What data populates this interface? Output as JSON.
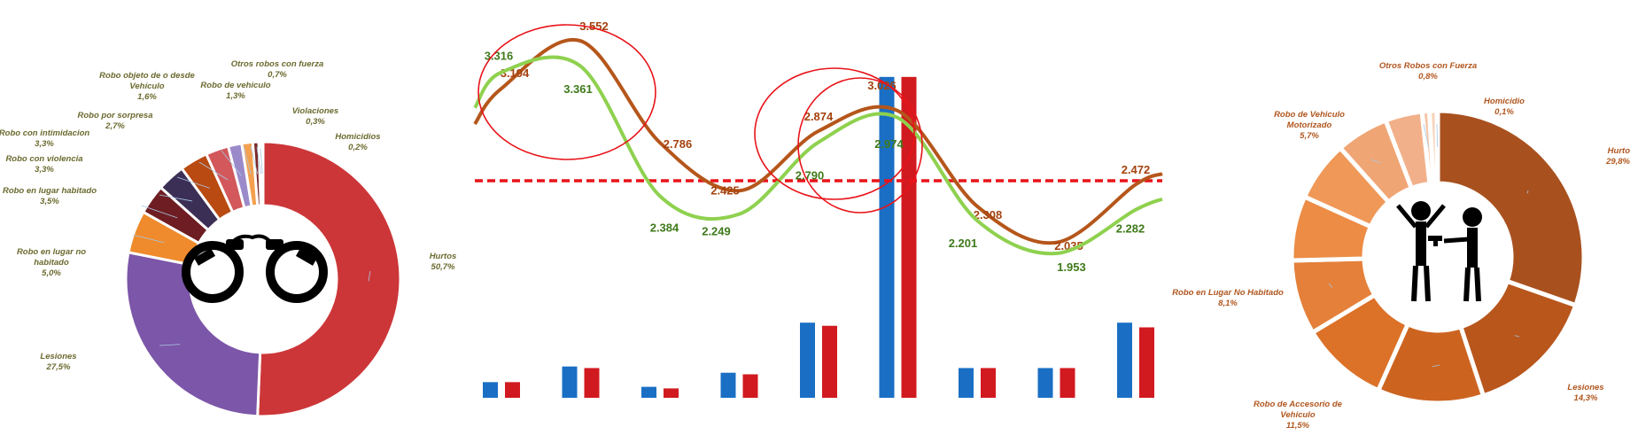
{
  "chart_data": [
    {
      "type": "pie",
      "donut": true,
      "slices": [
        {
          "name_lines": [
            "Hurtos"
          ],
          "pct_label": "50,7%",
          "value": 50.7,
          "color": "#cc3638"
        },
        {
          "name_lines": [
            "Lesiones"
          ],
          "pct_label": "27,5%",
          "value": 27.5,
          "color": "#7c56a8"
        },
        {
          "name_lines": [
            "Robo en lugar no",
            "habitado"
          ],
          "pct_label": "5,0%",
          "value": 5.0,
          "color": "#ef8b2c"
        },
        {
          "name_lines": [
            "Robo en lugar habitado"
          ],
          "pct_label": "3,5%",
          "value": 3.5,
          "color": "#6e1e22"
        },
        {
          "name_lines": [
            "Robo con violencia"
          ],
          "pct_label": "3,3%",
          "value": 3.3,
          "color": "#3c2f55"
        },
        {
          "name_lines": [
            "Robo con intimidacion"
          ],
          "pct_label": "3,3%",
          "value": 3.3,
          "color": "#b84a12"
        },
        {
          "name_lines": [
            "Robo por sorpresa"
          ],
          "pct_label": "2,7%",
          "value": 2.7,
          "color": "#d2585b"
        },
        {
          "name_lines": [
            "Robo objeto de o desde",
            "Vehículo"
          ],
          "pct_label": "1,6%",
          "value": 1.6,
          "color": "#9b8ac9"
        },
        {
          "name_lines": [
            "Robo de vehiculo"
          ],
          "pct_label": "1,3%",
          "value": 1.3,
          "color": "#f4a04f"
        },
        {
          "name_lines": [
            "Otros robos con fuerza"
          ],
          "pct_label": "0,7%",
          "value": 0.7,
          "color": "#7a2a2a"
        },
        {
          "name_lines": [
            "Violaciones"
          ],
          "pct_label": "0,3%",
          "value": 0.3,
          "color": "#584a7a"
        },
        {
          "name_lines": [
            "Homicidios"
          ],
          "pct_label": "0,2%",
          "value": 0.2,
          "color": "#c06020"
        }
      ],
      "center_icon": "handcuffs-icon"
    },
    {
      "type": "line",
      "series": [
        {
          "color": "#b5561b",
          "points": [
            {
              "value": 3.194,
              "label": "3.194"
            },
            {
              "value": 3.552,
              "label": "3.552"
            },
            {
              "value": 2.786,
              "label": "2.786"
            },
            {
              "value": 2.425,
              "label": "2.425"
            },
            {
              "value": 2.874,
              "label": "2.874"
            },
            {
              "value": 3.026,
              "label": "3.026"
            },
            {
              "value": 2.308,
              "label": "2.308"
            },
            {
              "value": 2.035,
              "label": "2.035"
            },
            {
              "value": 2.472,
              "label": "2.472"
            }
          ]
        },
        {
          "color": "#8fd14f",
          "points": [
            {
              "value": 3.316,
              "label": "3.316"
            },
            {
              "value": 3.361,
              "label": "3.361"
            },
            {
              "value": 2.384,
              "label": "2.384"
            },
            {
              "value": 2.249,
              "label": "2.249"
            },
            {
              "value": 2.79,
              "label": "2.790"
            },
            {
              "value": 2.974,
              "label": "2.974"
            },
            {
              "value": 2.201,
              "label": "2.201"
            },
            {
              "value": 1.953,
              "label": "1.953"
            },
            {
              "value": 2.282,
              "label": "2.282"
            }
          ]
        }
      ],
      "reference_line": {
        "value": 2.5,
        "style": "dashed",
        "color": "#e8141a"
      },
      "highlight_circles": 3,
      "bars": {
        "series_colors": [
          "#1a6fc4",
          "#d11a1f"
        ],
        "groups": [
          [
            1.0,
            1.0
          ],
          [
            2.0,
            1.9
          ],
          [
            0.7,
            0.6
          ],
          [
            1.6,
            1.5
          ],
          [
            4.8,
            4.6
          ],
          [
            20.5,
            20.5
          ],
          [
            1.9,
            1.9
          ],
          [
            1.9,
            1.9
          ],
          [
            4.8,
            4.5
          ]
        ],
        "ylim": [
          0,
          21
        ]
      }
    },
    {
      "type": "pie",
      "donut": true,
      "slices": [
        {
          "name_lines": [
            "Hurto"
          ],
          "pct_label": "29,8%",
          "value": 29.8,
          "color": "#a8511f"
        },
        {
          "name_lines": [
            "Lesiones"
          ],
          "pct_label": "14,3%",
          "value": 14.3,
          "color": "#b8561c"
        },
        {
          "name_lines": [
            "Robo de Accesorio de",
            "Vehiculo"
          ],
          "pct_label": "11,5%",
          "value": 11.5,
          "color": "#cc6420"
        },
        {
          "name_lines": [],
          "pct_label": "",
          "value": 9.5,
          "color": "#dc7128"
        },
        {
          "name_lines": [
            "Robo en Lugar No Habitado"
          ],
          "pct_label": "8,1%",
          "value": 8.1,
          "color": "#e4803a"
        },
        {
          "name_lines": [],
          "pct_label": "",
          "value": 7.0,
          "color": "#ec8c45"
        },
        {
          "name_lines": [],
          "pct_label": "",
          "value": 6.5,
          "color": "#ef9858"
        },
        {
          "name_lines": [
            "Robo de Vehiculo",
            "Motorizado"
          ],
          "pct_label": "5,7%",
          "value": 5.7,
          "color": "#f0a575"
        },
        {
          "name_lines": [],
          "pct_label": "",
          "value": 4.0,
          "color": "#f2b08a"
        },
        {
          "name_lines": [
            "Otros Robos con Fuerza"
          ],
          "pct_label": "0,8%",
          "value": 0.8,
          "color": "#f6c7aa"
        },
        {
          "name_lines": [],
          "pct_label": "",
          "value": 0.8,
          "color": "#f8d2ba"
        },
        {
          "name_lines": [
            "Homicidio"
          ],
          "pct_label": "0,1%",
          "value": 0.1,
          "color": "#f3c0a0"
        }
      ],
      "center_icon": "robbery-figures-icon"
    }
  ]
}
